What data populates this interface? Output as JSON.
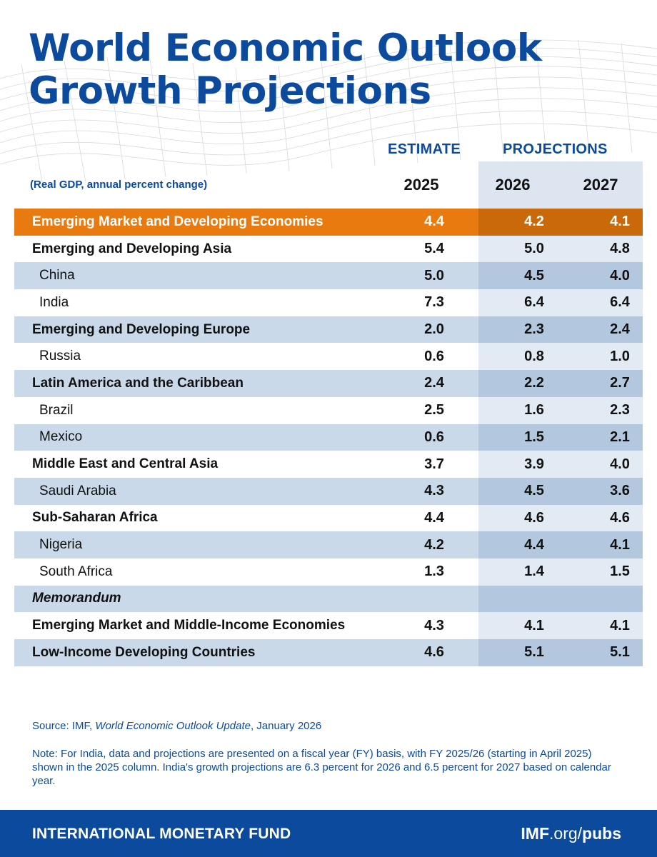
{
  "title": {
    "line1": "World Economic Outlook",
    "line2": "Growth Projections"
  },
  "header": {
    "estimate_label": "ESTIMATE",
    "projections_label": "PROJECTIONS",
    "subtitle": "(Real GDP, annual percent change)",
    "years": [
      "2025",
      "2026",
      "2027"
    ]
  },
  "rows": [
    {
      "label": "Emerging Market and Developing Economies",
      "values": [
        "4.4",
        "4.2",
        "4.1"
      ]
    },
    {
      "label": "Emerging and Developing Asia",
      "values": [
        "5.4",
        "5.0",
        "4.8"
      ]
    },
    {
      "label": "China",
      "values": [
        "5.0",
        "4.5",
        "4.0"
      ]
    },
    {
      "label": "India",
      "values": [
        "7.3",
        "6.4",
        "6.4"
      ]
    },
    {
      "label": "Emerging and Developing Europe",
      "values": [
        "2.0",
        "2.3",
        "2.4"
      ]
    },
    {
      "label": "Russia",
      "values": [
        "0.6",
        "0.8",
        "1.0"
      ]
    },
    {
      "label": "Latin America and the Caribbean",
      "values": [
        "2.4",
        "2.2",
        "2.7"
      ]
    },
    {
      "label": "Brazil",
      "values": [
        "2.5",
        "1.6",
        "2.3"
      ]
    },
    {
      "label": "Mexico",
      "values": [
        "0.6",
        "1.5",
        "2.1"
      ]
    },
    {
      "label": "Middle East and Central Asia",
      "values": [
        "3.7",
        "3.9",
        "4.0"
      ]
    },
    {
      "label": "Saudi Arabia",
      "values": [
        "4.3",
        "4.5",
        "3.6"
      ]
    },
    {
      "label": "Sub-Saharan Africa",
      "values": [
        "4.4",
        "4.6",
        "4.6"
      ]
    },
    {
      "label": "Nigeria",
      "values": [
        "4.2",
        "4.4",
        "4.1"
      ]
    },
    {
      "label": "South Africa",
      "values": [
        "1.3",
        "1.4",
        "1.5"
      ]
    },
    {
      "label": "Memorandum",
      "values": [
        "",
        "",
        ""
      ]
    },
    {
      "label": "Emerging Market and Middle-Income Economies",
      "values": [
        "4.3",
        "4.1",
        "4.1"
      ]
    },
    {
      "label": "Low-Income Developing Countries",
      "values": [
        "4.6",
        "5.1",
        "5.1"
      ]
    }
  ],
  "source": {
    "prefix": "Source: IMF, ",
    "publication": "World Economic Outlook Update",
    "suffix": ", January 2026"
  },
  "note": "Note: For India, data and projections are presented on a fiscal year (FY) basis, with FY 2025/26 (starting in April 2025) shown in the 2025 column. India's growth projections are 6.3 percent for 2026 and 6.5 percent for 2027 based on calendar year.",
  "footer": {
    "org": "INTERNATIONAL MONETARY FUND",
    "url_bold": "IMF",
    "url_mid": ".org/",
    "url_end": "pubs"
  },
  "colors": {
    "brand_blue": "#0b4a9c",
    "highlight_orange": "#e97a10",
    "row_blue": "#c9d9ea"
  }
}
